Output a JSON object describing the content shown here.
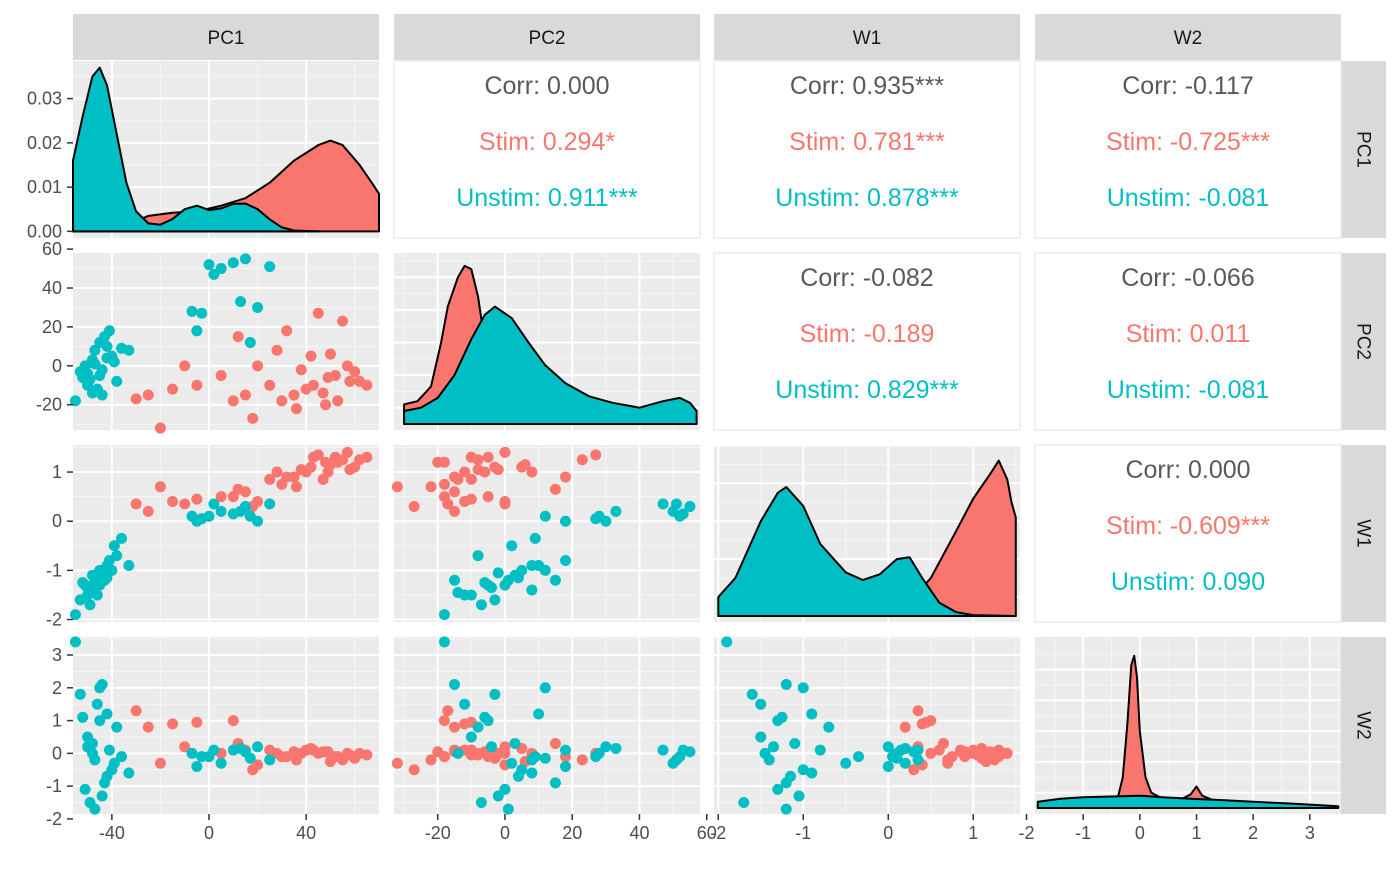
{
  "chart_data": {
    "type": "scatter-matrix",
    "variables": [
      "PC1",
      "PC2",
      "W1",
      "W2"
    ],
    "groups": [
      {
        "name": "Stim",
        "color": "#F8766D"
      },
      {
        "name": "Unstim",
        "color": "#00BFC4"
      }
    ],
    "axes": {
      "PC1": {
        "range": [
          -56,
          70
        ],
        "ticks": [
          -40,
          0,
          40
        ],
        "tick_labels": [
          "-40",
          "0",
          "40"
        ]
      },
      "PC2": {
        "range": [
          -33,
          58
        ],
        "ticks": [
          -20,
          0,
          20,
          40,
          60
        ],
        "tick_labels": [
          "-20",
          "0",
          "20",
          "40",
          "60"
        ]
      },
      "W1": {
        "range": [
          -2.05,
          1.55
        ],
        "ticks": [
          -2,
          -1,
          0,
          1
        ],
        "tick_labels": [
          "-2",
          "-1",
          "0",
          "1"
        ]
      },
      "W2": {
        "range": [
          -1.85,
          3.55
        ],
        "ticks": [
          -2,
          -1,
          0,
          1,
          2,
          3
        ],
        "tick_labels": [
          "-2",
          "-1",
          "0",
          "1",
          "2",
          "3"
        ]
      }
    },
    "diag_y_axis": {
      "range": [
        -0.0015,
        0.0385
      ],
      "ticks": [
        0,
        0.01,
        0.02,
        0.03
      ],
      "tick_labels": [
        "0.00",
        "0.01",
        "0.02",
        "0.03"
      ]
    },
    "correlations": [
      {
        "row": "PC1",
        "col": "PC2",
        "corr": "Corr: 0.000",
        "stim": "Stim: 0.294*",
        "unstim": "Unstim: 0.911***"
      },
      {
        "row": "PC1",
        "col": "W1",
        "corr": "Corr: 0.935***",
        "stim": "Stim: 0.781***",
        "unstim": "Unstim: 0.878***"
      },
      {
        "row": "PC1",
        "col": "W2",
        "corr": "Corr: -0.117",
        "stim": "Stim: -0.725***",
        "unstim": "Unstim: -0.081"
      },
      {
        "row": "PC2",
        "col": "W1",
        "corr": "Corr: -0.082",
        "stim": "Stim: -0.189",
        "unstim": "Unstim: 0.829***"
      },
      {
        "row": "PC2",
        "col": "W2",
        "corr": "Corr: -0.066",
        "stim": "Stim: 0.011",
        "unstim": "Unstim: -0.081"
      },
      {
        "row": "W1",
        "col": "W2",
        "corr": "Corr: 0.000",
        "stim": "Stim: -0.609***",
        "unstim": "Unstim: 0.090"
      }
    ],
    "densities": {
      "PC1": {
        "Stim": [
          [
            -56,
            0
          ],
          [
            -46,
            0.0003
          ],
          [
            -35,
            0.0012
          ],
          [
            -25,
            0.0035
          ],
          [
            -15,
            0.0042
          ],
          [
            -5,
            0.0045
          ],
          [
            5,
            0.0058
          ],
          [
            15,
            0.0075
          ],
          [
            25,
            0.011
          ],
          [
            35,
            0.016
          ],
          [
            45,
            0.0195
          ],
          [
            50,
            0.0205
          ],
          [
            55,
            0.0195
          ],
          [
            62,
            0.015
          ],
          [
            68,
            0.0102
          ],
          [
            70,
            0.0085
          ]
        ],
        "Unstim": [
          [
            -56,
            0.016
          ],
          [
            -52,
            0.026
          ],
          [
            -48,
            0.035
          ],
          [
            -45,
            0.037
          ],
          [
            -42,
            0.033
          ],
          [
            -38,
            0.022
          ],
          [
            -34,
            0.011
          ],
          [
            -30,
            0.0045
          ],
          [
            -25,
            0.0018
          ],
          [
            -20,
            0.0015
          ],
          [
            -15,
            0.0028
          ],
          [
            -10,
            0.005
          ],
          [
            -5,
            0.0058
          ],
          [
            0,
            0.0048
          ],
          [
            5,
            0.0052
          ],
          [
            10,
            0.0062
          ],
          [
            15,
            0.0063
          ],
          [
            20,
            0.005
          ],
          [
            25,
            0.0027
          ],
          [
            30,
            0.0009
          ],
          [
            35,
            0.0002
          ],
          [
            45,
            0
          ]
        ]
      },
      "PC2": {
        "Stim": [
          [
            -30,
            0.12
          ],
          [
            -26,
            0.14
          ],
          [
            -22,
            0.23
          ],
          [
            -19,
            0.5
          ],
          [
            -17,
            0.72
          ],
          [
            -14,
            0.9
          ],
          [
            -12,
            0.97
          ],
          [
            -10,
            0.95
          ],
          [
            -8,
            0.78
          ],
          [
            -6,
            0.5
          ],
          [
            -4,
            0.3
          ],
          [
            0,
            0.12
          ],
          [
            5,
            0.04
          ],
          [
            10,
            0.01
          ],
          [
            20,
            0
          ]
        ],
        "Unstim": [
          [
            -30,
            0.08
          ],
          [
            -25,
            0.1
          ],
          [
            -20,
            0.16
          ],
          [
            -15,
            0.3
          ],
          [
            -10,
            0.52
          ],
          [
            -6,
            0.67
          ],
          [
            -3,
            0.72
          ],
          [
            2,
            0.65
          ],
          [
            7,
            0.5
          ],
          [
            12,
            0.36
          ],
          [
            18,
            0.25
          ],
          [
            25,
            0.17
          ],
          [
            32,
            0.13
          ],
          [
            40,
            0.1
          ],
          [
            47,
            0.14
          ],
          [
            52,
            0.16
          ],
          [
            55,
            0.13
          ],
          [
            57,
            0.08
          ]
        ]
      },
      "W1": {
        "Stim": [
          [
            -2,
            0
          ],
          [
            -1.5,
            0.003
          ],
          [
            -1.2,
            0.005
          ],
          [
            -0.7,
            0.008
          ],
          [
            -0.2,
            0.012
          ],
          [
            0.2,
            0.05
          ],
          [
            0.5,
            0.2
          ],
          [
            0.8,
            0.45
          ],
          [
            1.0,
            0.62
          ],
          [
            1.2,
            0.75
          ],
          [
            1.3,
            0.82
          ],
          [
            1.4,
            0.72
          ],
          [
            1.45,
            0.6
          ],
          [
            1.5,
            0.52
          ]
        ],
        "Unstim": [
          [
            -2,
            0.1
          ],
          [
            -1.8,
            0.2
          ],
          [
            -1.5,
            0.5
          ],
          [
            -1.3,
            0.65
          ],
          [
            -1.2,
            0.68
          ],
          [
            -1.0,
            0.58
          ],
          [
            -0.8,
            0.38
          ],
          [
            -0.5,
            0.23
          ],
          [
            -0.3,
            0.19
          ],
          [
            -0.1,
            0.22
          ],
          [
            0.1,
            0.3
          ],
          [
            0.25,
            0.31
          ],
          [
            0.4,
            0.2
          ],
          [
            0.6,
            0.07
          ],
          [
            0.8,
            0.02
          ],
          [
            1.0,
            0.005
          ],
          [
            1.5,
            0
          ]
        ]
      },
      "W2": {
        "Stim": [
          [
            -1.8,
            0.02
          ],
          [
            -0.6,
            0.03
          ],
          [
            -0.4,
            0.05
          ],
          [
            -0.3,
            0.2
          ],
          [
            -0.22,
            0.55
          ],
          [
            -0.15,
            0.93
          ],
          [
            -0.1,
            0.99
          ],
          [
            -0.05,
            0.85
          ],
          [
            0.0,
            0.5
          ],
          [
            0.1,
            0.2
          ],
          [
            0.2,
            0.1
          ],
          [
            0.4,
            0.06
          ],
          [
            0.7,
            0.05
          ],
          [
            0.9,
            0.09
          ],
          [
            1.0,
            0.14
          ],
          [
            1.1,
            0.08
          ],
          [
            1.3,
            0.05
          ],
          [
            2.0,
            0.03
          ],
          [
            3.0,
            0.02
          ],
          [
            3.5,
            0.01
          ]
        ],
        "Unstim": [
          [
            -1.8,
            0.04
          ],
          [
            -1.4,
            0.06
          ],
          [
            -1.0,
            0.07
          ],
          [
            -0.5,
            0.075
          ],
          [
            0.0,
            0.08
          ],
          [
            0.4,
            0.07
          ],
          [
            0.9,
            0.06
          ],
          [
            1.5,
            0.05
          ],
          [
            2.0,
            0.04
          ],
          [
            2.6,
            0.03
          ],
          [
            3.0,
            0.022
          ],
          [
            3.5,
            0.012
          ]
        ]
      }
    },
    "observations": {
      "Stim": [
        {
          "PC1": 52,
          "PC2": -5,
          "W1": 1.3,
          "W2": -0.1
        },
        {
          "PC1": 48,
          "PC2": -20,
          "W1": 1.2,
          "W2": 0.05
        },
        {
          "PC1": 45,
          "PC2": 27,
          "W1": 1.35,
          "W2": 0.0
        },
        {
          "PC1": 58,
          "PC2": -8,
          "W1": 1.05,
          "W2": -0.05
        },
        {
          "PC1": 40,
          "PC2": -12,
          "W1": 1.0,
          "W2": 0.1
        },
        {
          "PC1": 55,
          "PC2": 23,
          "W1": 1.25,
          "W2": -0.2
        },
        {
          "PC1": 62,
          "PC2": -8,
          "W1": 1.25,
          "W2": 0.0
        },
        {
          "PC1": 30,
          "PC2": -18,
          "W1": 0.75,
          "W2": -0.1
        },
        {
          "PC1": 35,
          "PC2": -15,
          "W1": 0.9,
          "W2": 0.05
        },
        {
          "PC1": 50,
          "PC2": 6,
          "W1": 1.15,
          "W2": -0.25
        },
        {
          "PC1": 43,
          "PC2": -10,
          "W1": 1.3,
          "W2": 0.1
        },
        {
          "PC1": 60,
          "PC2": -3,
          "W1": 1.1,
          "W2": -0.15
        },
        {
          "PC1": 38,
          "PC2": -2,
          "W1": 1.05,
          "W2": 0.0
        },
        {
          "PC1": 47,
          "PC2": -14,
          "W1": 0.85,
          "W2": 0.05
        },
        {
          "PC1": 53,
          "PC2": -18,
          "W1": 1.2,
          "W2": -0.1
        },
        {
          "PC1": 57,
          "PC2": 0,
          "W1": 1.4,
          "W2": 0.0
        },
        {
          "PC1": 42,
          "PC2": 5,
          "W1": 1.1,
          "W2": 0.15
        },
        {
          "PC1": 65,
          "PC2": -10,
          "W1": 1.3,
          "W2": -0.05
        },
        {
          "PC1": 36,
          "PC2": -22,
          "W1": 0.7,
          "W2": -0.2
        },
        {
          "PC1": 49,
          "PC2": -6,
          "W1": 1.0,
          "W2": 0.05
        },
        {
          "PC1": 28,
          "PC2": 8,
          "W1": 1.0,
          "W2": 0.0
        },
        {
          "PC1": 20,
          "PC2": 0,
          "W1": 0.4,
          "W2": -0.35
        },
        {
          "PC1": 15,
          "PC2": -15,
          "W1": 0.6,
          "W2": 0.1
        },
        {
          "PC1": 10,
          "PC2": -18,
          "W1": 0.5,
          "W2": 1.0
        },
        {
          "PC1": 18,
          "PC2": -27,
          "W1": 0.3,
          "W2": -0.5
        },
        {
          "PC1": -5,
          "PC2": -10,
          "W1": 0.45,
          "W2": 0.95
        },
        {
          "PC1": -20,
          "PC2": -32,
          "W1": 0.7,
          "W2": -0.3
        },
        {
          "PC1": -15,
          "PC2": -12,
          "W1": 0.4,
          "W2": 0.9
        },
        {
          "PC1": -30,
          "PC2": -17,
          "W1": 0.35,
          "W2": 1.3
        },
        {
          "PC1": -25,
          "PC2": -15,
          "W1": 0.2,
          "W2": 0.8
        },
        {
          "PC1": 12,
          "PC2": 15,
          "W1": 0.65,
          "W2": 0.3
        },
        {
          "PC1": 5,
          "PC2": -5,
          "W1": 0.5,
          "W2": 0.0
        },
        {
          "PC1": 25,
          "PC2": -10,
          "W1": 0.85,
          "W2": 0.1
        },
        {
          "PC1": 32,
          "PC2": 18,
          "W1": 0.9,
          "W2": -0.1
        },
        {
          "PC1": -10,
          "PC2": 0,
          "W1": 0.35,
          "W2": 0.2
        }
      ],
      "Unstim": [
        {
          "PC1": -45,
          "PC2": -5,
          "W1": -1.3,
          "W2": 1.0
        },
        {
          "PC1": -48,
          "PC2": 3,
          "W1": -1.1,
          "W2": 0.3
        },
        {
          "PC1": -42,
          "PC2": 10,
          "W1": -0.9,
          "W2": 1.2
        },
        {
          "PC1": -50,
          "PC2": -10,
          "W1": -1.5,
          "W2": 0.5
        },
        {
          "PC1": -53,
          "PC2": -3,
          "W1": -1.6,
          "W2": 1.8
        },
        {
          "PC1": -40,
          "PC2": 5,
          "W1": -1.0,
          "W2": -0.5
        },
        {
          "PC1": -44,
          "PC2": -15,
          "W1": -1.2,
          "W2": 2.1
        },
        {
          "PC1": -47,
          "PC2": 8,
          "W1": -1.4,
          "W2": -0.2
        },
        {
          "PC1": -38,
          "PC2": -8,
          "W1": -0.7,
          "W2": 0.8
        },
        {
          "PC1": -51,
          "PC2": 0,
          "W1": -1.3,
          "W2": -1.1
        },
        {
          "PC1": -43,
          "PC2": 15,
          "W1": -1.2,
          "W2": -0.9
        },
        {
          "PC1": -46,
          "PC2": -12,
          "W1": -1.5,
          "W2": 1.5
        },
        {
          "PC1": -41,
          "PC2": 18,
          "W1": -0.8,
          "W2": 0.1
        },
        {
          "PC1": -49,
          "PC2": -7,
          "W1": -1.7,
          "W2": -1.5
        },
        {
          "PC1": -55,
          "PC2": -18,
          "W1": -1.9,
          "W2": 3.4
        },
        {
          "PC1": -39,
          "PC2": 2,
          "W1": -0.5,
          "W2": -0.3
        },
        {
          "PC1": -44,
          "PC2": -2,
          "W1": -1.05,
          "W2": -1.3
        },
        {
          "PC1": -52,
          "PC2": -6,
          "W1": -1.25,
          "W2": 1.1
        },
        {
          "PC1": -42,
          "PC2": 4,
          "W1": -1.15,
          "W2": -0.7
        },
        {
          "PC1": -48,
          "PC2": -14,
          "W1": -1.45,
          "W2": 0.0
        },
        {
          "PC1": -36,
          "PC2": 9,
          "W1": -0.35,
          "W2": -0.1
        },
        {
          "PC1": -47,
          "PC2": 1,
          "W1": -1.2,
          "W2": -1.7
        },
        {
          "PC1": -45,
          "PC2": 12,
          "W1": -1.0,
          "W2": 2.0
        },
        {
          "PC1": -50,
          "PC2": -4,
          "W1": -1.35,
          "W2": 0.2
        },
        {
          "PC1": -33,
          "PC2": 8,
          "W1": -0.9,
          "W2": -0.6
        },
        {
          "PC1": 0,
          "PC2": 52,
          "W1": 0.1,
          "W2": -0.1
        },
        {
          "PC1": 5,
          "PC2": 50,
          "W1": 0.2,
          "W2": -0.3
        },
        {
          "PC1": 10,
          "PC2": 53,
          "W1": 0.15,
          "W2": 0.1
        },
        {
          "PC1": 15,
          "PC2": 55,
          "W1": 0.3,
          "W2": 0.05
        },
        {
          "PC1": 25,
          "PC2": 51,
          "W1": 0.35,
          "W2": -0.2
        },
        {
          "PC1": 13,
          "PC2": 33,
          "W1": 0.2,
          "W2": 0.15
        },
        {
          "PC1": -7,
          "PC2": 28,
          "W1": 0.1,
          "W2": 0.0
        },
        {
          "PC1": -5,
          "PC2": 18,
          "W1": 0.0,
          "W2": -0.4
        },
        {
          "PC1": -3,
          "PC2": 27,
          "W1": 0.05,
          "W2": -0.1
        },
        {
          "PC1": 20,
          "PC2": 30,
          "W1": 0.0,
          "W2": 0.2
        },
        {
          "PC1": 2,
          "PC2": 47,
          "W1": 0.35,
          "W2": 0.1
        },
        {
          "PC1": 17,
          "PC2": 12,
          "W1": 0.1,
          "W2": -0.15
        }
      ]
    }
  }
}
